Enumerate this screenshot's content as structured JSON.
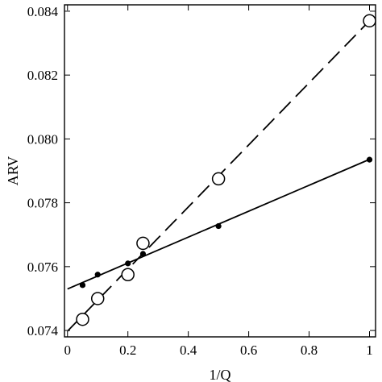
{
  "chart_data": {
    "type": "scatter",
    "xlabel": "1/Q",
    "ylabel": "ARV",
    "xlim": [
      -0.01,
      1.02
    ],
    "ylim": [
      0.0738,
      0.0842
    ],
    "x_ticks": [
      0,
      0.2,
      0.4,
      0.6,
      0.8,
      1
    ],
    "x_tick_labels": [
      "0",
      "0.2",
      "0.4",
      "0.6",
      "0.8",
      "1"
    ],
    "y_ticks": [
      0.074,
      0.076,
      0.078,
      0.08,
      0.082,
      0.084
    ],
    "y_tick_labels": [
      "0.074",
      "0.076",
      "0.078",
      "0.080",
      "0.082",
      "0.084"
    ],
    "grid": false,
    "series": [
      {
        "marker": "filled-circle",
        "x": [
          0.05,
          0.1,
          0.2,
          0.25,
          0.5,
          1.0
        ],
        "y": [
          0.07542,
          0.07575,
          0.0761,
          0.0764,
          0.07727,
          0.07935
        ],
        "fit_line": {
          "style": "solid",
          "x": [
            0,
            1
          ],
          "y": [
            0.0753,
            0.07936
          ]
        }
      },
      {
        "marker": "open-circle",
        "x": [
          0.05,
          0.1,
          0.2,
          0.25,
          0.5,
          1.0
        ],
        "y": [
          0.07435,
          0.075,
          0.07575,
          0.07673,
          0.07875,
          0.0837
        ],
        "fit_line": {
          "style": "dashed",
          "x": [
            0,
            1
          ],
          "y": [
            0.07398,
            0.0837
          ]
        }
      }
    ]
  }
}
